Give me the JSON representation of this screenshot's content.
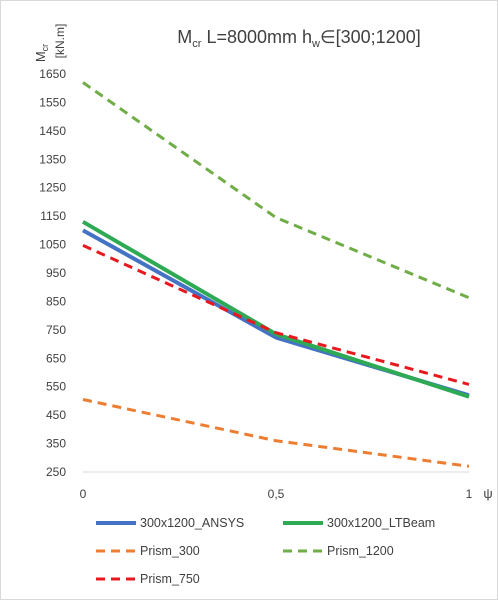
{
  "chart_data": {
    "type": "line",
    "title": {
      "m": "M",
      "m_sub": "cr",
      "mid": " L=8000mm h",
      "h_sub": "w",
      "end": "∈[300;1200]"
    },
    "ylabel": {
      "m": "M",
      "m_sub": "cr",
      "unit": "[kN.m]"
    },
    "xlabel": "ψ",
    "x_ticks": [
      "0",
      "0,5",
      "1"
    ],
    "y_ticks": [
      "250",
      "350",
      "450",
      "550",
      "650",
      "750",
      "850",
      "950",
      "1050",
      "1150",
      "1250",
      "1350",
      "1450",
      "1550",
      "1650"
    ],
    "xlim": [
      0,
      1
    ],
    "ylim": [
      250,
      1650
    ],
    "grid": false,
    "legend_position": "bottom",
    "series": [
      {
        "name": "300x1200_ANSYS",
        "x": [
          0,
          0.5,
          1
        ],
        "y": [
          1100,
          723,
          520
        ],
        "color": "#4472c4",
        "dash": "solid"
      },
      {
        "name": "300x1200_LTBeam",
        "x": [
          0,
          0.5,
          1
        ],
        "y": [
          1130,
          735,
          515
        ],
        "color": "#2eaa55",
        "dash": "solid"
      },
      {
        "name": "Prism_300",
        "x": [
          0,
          0.5,
          1
        ],
        "y": [
          505,
          360,
          270
        ],
        "color": "#ed7d31",
        "dash": "dashed"
      },
      {
        "name": "Prism_1200",
        "x": [
          0,
          0.5,
          1
        ],
        "y": [
          1620,
          1145,
          863
        ],
        "color": "#70ad47",
        "dash": "dashed"
      },
      {
        "name": "Prism_750",
        "x": [
          0,
          0.5,
          1
        ],
        "y": [
          1047,
          740,
          558
        ],
        "color": "#e8191e",
        "dash": "dashed"
      }
    ]
  }
}
